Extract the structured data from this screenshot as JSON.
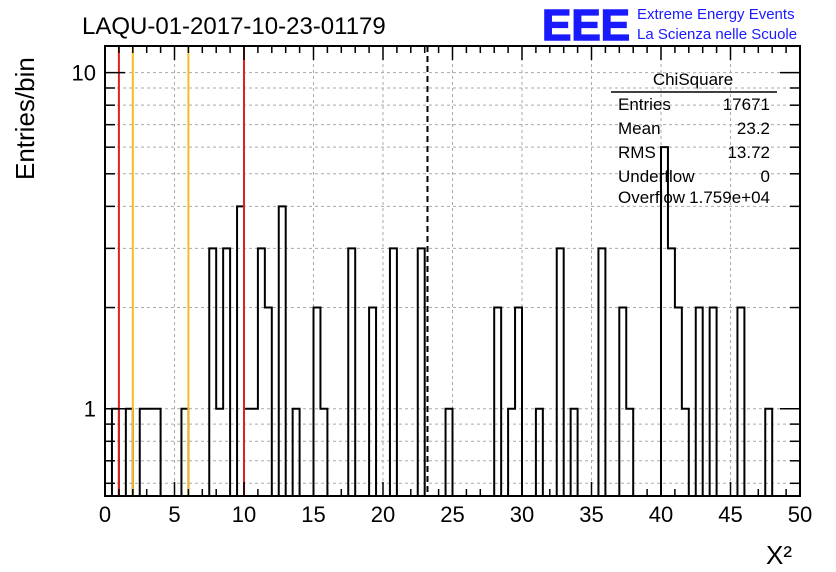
{
  "header": {
    "title": "LAQU-01-2017-10-23-01179",
    "logo_text": "EEE",
    "logo_line1": "Extreme Energy Events",
    "logo_line2": "La Scienza nelle Scuole"
  },
  "stats": {
    "title": "ChiSquare",
    "rows": [
      {
        "label": "Entries",
        "value": "17671"
      },
      {
        "label": "Mean",
        "value": "23.2"
      },
      {
        "label": "RMS",
        "value": "13.72"
      },
      {
        "label": "Underflow",
        "value": "0"
      },
      {
        "label": "Overflow",
        "value": "1.759e+04"
      }
    ]
  },
  "colors": {
    "red_line": "#dd2222",
    "yellow_line": "#f0c020",
    "logo_blue": "#1a1aff",
    "histogram": "#000000"
  },
  "chart_data": {
    "type": "bar",
    "histogram_style": "step",
    "xlabel": "X²",
    "ylabel": "Entries/bin",
    "xlim": [
      0,
      50
    ],
    "ylim": [
      0.55,
      12
    ],
    "y_scale": "log",
    "grid": true,
    "bin_width": 0.5,
    "x_ticks": [
      0,
      5,
      10,
      15,
      20,
      25,
      30,
      35,
      40,
      45,
      50
    ],
    "x_tick_labels": [
      "0",
      "5",
      "10",
      "15",
      "20",
      "25",
      "30",
      "35",
      "40",
      "45",
      "50"
    ],
    "y_ticks": [
      1,
      10
    ],
    "y_tick_labels": [
      "1",
      "10"
    ],
    "bins": [
      {
        "x": 0.5,
        "y": 1
      },
      {
        "x": 1.5,
        "y": 1
      },
      {
        "x": 2.5,
        "y": 1
      },
      {
        "x": 3.0,
        "y": 1
      },
      {
        "x": 3.5,
        "y": 1
      },
      {
        "x": 5.5,
        "y": 1
      },
      {
        "x": 7.5,
        "y": 3
      },
      {
        "x": 8.0,
        "y": 1
      },
      {
        "x": 8.5,
        "y": 3
      },
      {
        "x": 9.5,
        "y": 4
      },
      {
        "x": 10.0,
        "y": 1
      },
      {
        "x": 10.5,
        "y": 1
      },
      {
        "x": 11.0,
        "y": 3
      },
      {
        "x": 11.5,
        "y": 2
      },
      {
        "x": 12.5,
        "y": 4
      },
      {
        "x": 13.5,
        "y": 1
      },
      {
        "x": 15.0,
        "y": 2
      },
      {
        "x": 15.5,
        "y": 1
      },
      {
        "x": 17.5,
        "y": 3
      },
      {
        "x": 19.0,
        "y": 2
      },
      {
        "x": 20.5,
        "y": 3
      },
      {
        "x": 22.5,
        "y": 3
      },
      {
        "x": 24.5,
        "y": 1
      },
      {
        "x": 28.0,
        "y": 2
      },
      {
        "x": 29.0,
        "y": 1
      },
      {
        "x": 29.5,
        "y": 2
      },
      {
        "x": 31.0,
        "y": 1
      },
      {
        "x": 32.5,
        "y": 3
      },
      {
        "x": 33.5,
        "y": 1
      },
      {
        "x": 35.5,
        "y": 3
      },
      {
        "x": 37.0,
        "y": 2
      },
      {
        "x": 37.5,
        "y": 1
      },
      {
        "x": 40.0,
        "y": 6
      },
      {
        "x": 40.5,
        "y": 3
      },
      {
        "x": 41.0,
        "y": 2
      },
      {
        "x": 41.5,
        "y": 1
      },
      {
        "x": 42.5,
        "y": 2
      },
      {
        "x": 43.5,
        "y": 2
      },
      {
        "x": 45.5,
        "y": 2
      },
      {
        "x": 47.5,
        "y": 1
      }
    ],
    "vertical_lines": [
      {
        "x": 1,
        "color": "red",
        "style": "solid"
      },
      {
        "x": 2,
        "color": "yellow",
        "style": "solid"
      },
      {
        "x": 6,
        "color": "yellow",
        "style": "solid"
      },
      {
        "x": 10,
        "color": "red",
        "style": "solid"
      },
      {
        "x": 23.2,
        "color": "black",
        "style": "dashed"
      }
    ]
  }
}
